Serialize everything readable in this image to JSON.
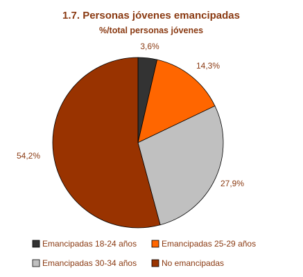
{
  "chart_data": {
    "type": "pie",
    "title": "1.7. Personas jóvenes emancipadas",
    "subtitle": "%/total personas jóvenes",
    "slices": [
      {
        "label": "Emancipadas 18-24 años",
        "value": 3.6,
        "display": "3,6%",
        "color": "#333333"
      },
      {
        "label": "Emancipadas 25-29 años",
        "value": 14.3,
        "display": "14,3%",
        "color": "#ff6600"
      },
      {
        "label": "Emancipadas 30-34 años",
        "value": 27.9,
        "display": "27,9%",
        "color": "#c0c0c0"
      },
      {
        "label": "No emancipadas",
        "value": 54.2,
        "display": "54,2%",
        "color": "#993300"
      }
    ],
    "legend_position": "bottom",
    "start_angle_deg": 0,
    "direction": "clockwise"
  }
}
